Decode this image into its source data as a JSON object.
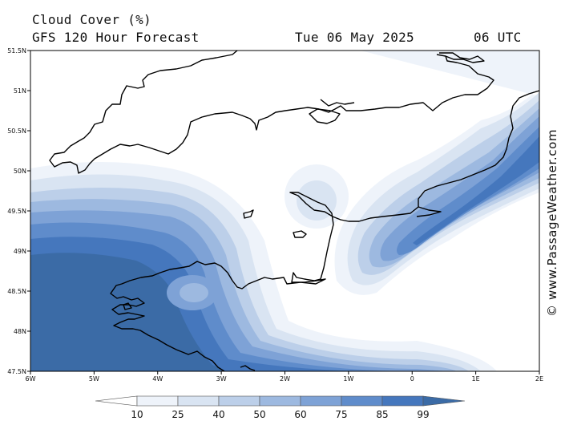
{
  "header": {
    "title": "Cloud Cover (%)",
    "subtitle": "GFS 120 Hour Forecast",
    "date": "Tue 06 May 2025",
    "time": "06 UTC"
  },
  "credit": "© www.PassageWeather.com",
  "map": {
    "lon_range": [
      -6,
      2
    ],
    "lat_range": [
      47.5,
      51.5
    ],
    "lat_ticks": [
      "51.5N",
      "51N",
      "50.5N",
      "50N",
      "49.5N",
      "49N",
      "48.5N",
      "48N",
      "47.5N"
    ],
    "lon_ticks": [
      "6W",
      "5W",
      "4W",
      "3W",
      "2W",
      "1W",
      "0",
      "1E",
      "2E"
    ],
    "coast_color": "#000000"
  },
  "legend": {
    "values": [
      "10",
      "25",
      "40",
      "50",
      "60",
      "75",
      "85",
      "99"
    ],
    "colors": [
      "#ffffff",
      "#eef3fa",
      "#d9e4f2",
      "#bccfe9",
      "#9db9e0",
      "#7ea2d6",
      "#5f8ccb",
      "#4577bd",
      "#3b6ba6"
    ]
  }
}
